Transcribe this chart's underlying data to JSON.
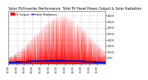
{
  "title": "Solar PV/Inverter Performance  Total PV Panel Power Output & Solar Radiation",
  "legend_pv": "PV Output",
  "legend_solar": "Solar Radiation",
  "bg_color": "#ffffff",
  "plot_bg": "#ffffff",
  "grid_color": "#aaaaaa",
  "red_color": "#ff0000",
  "blue_color": "#0000cc",
  "ylim": [
    0,
    4400
  ],
  "yticks": [
    500,
    1000,
    1500,
    2000,
    2500,
    3000,
    3500,
    4000
  ],
  "ytick_labels": [
    "500",
    "1000",
    "1500",
    "2000",
    "2500",
    "3000",
    "3500",
    "4000"
  ],
  "title_fontsize": 3.5,
  "legend_fontsize": 3.0,
  "tick_fontsize": 3.0
}
